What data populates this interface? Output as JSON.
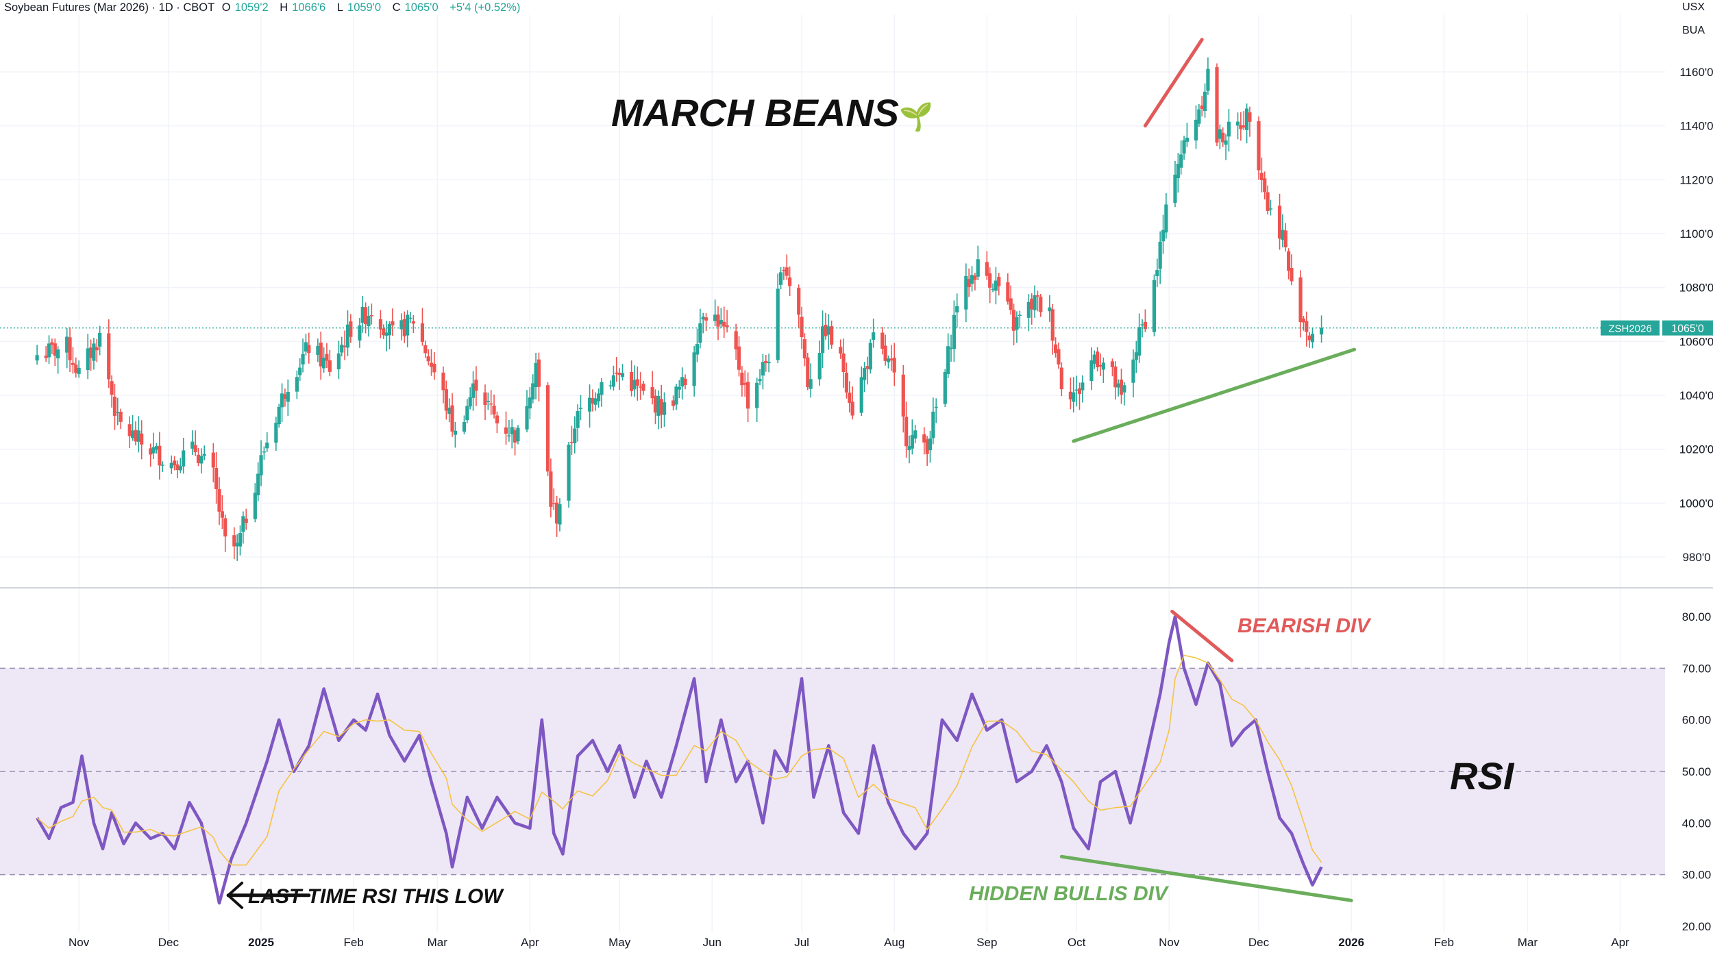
{
  "header": {
    "instrument": "Soybean Futures (Mar 2026) · 1D · CBOT",
    "open_label": "O",
    "open": "1059'2",
    "high_label": "H",
    "high": "1066'6",
    "low_label": "L",
    "low": "1059'0",
    "close_label": "C",
    "close": "1065'0",
    "change": "+5'4 (+0.52%)"
  },
  "currency": "USX",
  "unit": "BUA",
  "title": "MARCH BEANS",
  "title_emoji": "🌱",
  "price_label": {
    "symbol": "ZSH2026",
    "value": "1065'0"
  },
  "annotations": {
    "bearish_div": "BEARISH DIV",
    "hidden_bullish_div": "HIDDEN BULLIS DIV",
    "rsi_label": "RSI",
    "last_time": "LAST TIME RSI THIS LOW"
  },
  "colors": {
    "up": "#26a69a",
    "down": "#ef5350",
    "rsi_line": "#7e57c2",
    "rsi_ma": "#f6c343",
    "rsi_band": "#ede7f6",
    "bearish": "#e15a5a",
    "bullish": "#6aad5b",
    "price_label_bg": "#26a69a"
  },
  "chart_data": [
    {
      "type": "candlestick",
      "title": "MARCH BEANS",
      "ylim": [
        970,
        1175
      ],
      "yticks": [
        "980'0",
        "1000'0",
        "1020'0",
        "1040'0",
        "1060'0",
        "1080'0",
        "1100'0",
        "1120'0",
        "1140'0",
        "1160'0"
      ],
      "ytick_values": [
        980,
        1000,
        1020,
        1040,
        1060,
        1080,
        1100,
        1120,
        1140,
        1160
      ],
      "last_price": 1065,
      "path_anchors": [
        [
          "2024-10-18",
          1055
        ],
        [
          "2024-10-28",
          1058
        ],
        [
          "2024-11-01",
          1048
        ],
        [
          "2024-11-08",
          1062
        ],
        [
          "2024-11-14",
          1030
        ],
        [
          "2024-11-22",
          1022
        ],
        [
          "2024-12-02",
          1015
        ],
        [
          "2024-12-10",
          1020
        ],
        [
          "2024-12-16",
          1010
        ],
        [
          "2024-12-20",
          985
        ],
        [
          "2024-12-24",
          983
        ],
        [
          "2025-01-02",
          1020
        ],
        [
          "2025-01-10",
          1045
        ],
        [
          "2025-01-17",
          1058
        ],
        [
          "2025-01-24",
          1050
        ],
        [
          "2025-01-31",
          1065
        ],
        [
          "2025-02-07",
          1072
        ],
        [
          "2025-02-14",
          1062
        ],
        [
          "2025-02-21",
          1068
        ],
        [
          "2025-03-03",
          1040
        ],
        [
          "2025-03-07",
          1025
        ],
        [
          "2025-03-14",
          1045
        ],
        [
          "2025-03-21",
          1030
        ],
        [
          "2025-03-28",
          1025
        ],
        [
          "2025-04-03",
          1052
        ],
        [
          "2025-04-08",
          1000
        ],
        [
          "2025-04-10",
          995
        ],
        [
          "2025-04-16",
          1030
        ],
        [
          "2025-04-25",
          1045
        ],
        [
          "2025-05-02",
          1048
        ],
        [
          "2025-05-09",
          1040
        ],
        [
          "2025-05-16",
          1035
        ],
        [
          "2025-05-23",
          1045
        ],
        [
          "2025-05-29",
          1072
        ],
        [
          "2025-06-03",
          1068
        ],
        [
          "2025-06-09",
          1055
        ],
        [
          "2025-06-13",
          1038
        ],
        [
          "2025-06-20",
          1055
        ],
        [
          "2025-06-25",
          1090
        ],
        [
          "2025-06-30",
          1070
        ],
        [
          "2025-07-03",
          1045
        ],
        [
          "2025-07-09",
          1065
        ],
        [
          "2025-07-15",
          1050
        ],
        [
          "2025-07-18",
          1035
        ],
        [
          "2025-07-25",
          1060
        ],
        [
          "2025-07-31",
          1050
        ],
        [
          "2025-08-05",
          1025
        ],
        [
          "2025-08-12",
          1022
        ],
        [
          "2025-08-18",
          1048
        ],
        [
          "2025-08-22",
          1075
        ],
        [
          "2025-08-29",
          1088
        ],
        [
          "2025-09-05",
          1080
        ],
        [
          "2025-09-10",
          1066
        ],
        [
          "2025-09-17",
          1075
        ],
        [
          "2025-09-22",
          1070
        ],
        [
          "2025-09-26",
          1045
        ],
        [
          "2025-10-01",
          1040
        ],
        [
          "2025-10-07",
          1055
        ],
        [
          "2025-10-12",
          1050
        ],
        [
          "2025-10-16",
          1038
        ],
        [
          "2025-10-22",
          1062
        ],
        [
          "2025-10-26",
          1075
        ],
        [
          "2025-10-29",
          1095
        ],
        [
          "2025-11-03",
          1125
        ],
        [
          "2025-11-07",
          1135
        ],
        [
          "2025-11-12",
          1150
        ],
        [
          "2025-11-14",
          1160
        ],
        [
          "2025-11-17",
          1135
        ],
        [
          "2025-11-24",
          1140
        ],
        [
          "2025-11-28",
          1145
        ],
        [
          "2025-12-04",
          1110
        ],
        [
          "2025-12-09",
          1100
        ],
        [
          "2025-12-12",
          1080
        ],
        [
          "2025-12-18",
          1062
        ],
        [
          "2025-12-22",
          1065
        ]
      ]
    },
    {
      "type": "line",
      "title": "RSI",
      "ylim": [
        20,
        85
      ],
      "yticks": [
        "20.00",
        "30.00",
        "40.00",
        "50.00",
        "60.00",
        "70.00",
        "80.00"
      ],
      "ytick_values": [
        20,
        30,
        40,
        50,
        60,
        70,
        80
      ],
      "band": [
        30,
        70
      ],
      "dashed_levels": [
        30,
        50,
        70
      ],
      "series": [
        {
          "points": [
            [
              "2024-10-18",
              41
            ],
            [
              "2024-10-22",
              37
            ],
            [
              "2024-10-26",
              43
            ],
            [
              "2024-10-30",
              44
            ],
            [
              "2024-11-02",
              53
            ],
            [
              "2024-11-06",
              40
            ],
            [
              "2024-11-09",
              35
            ],
            [
              "2024-11-12",
              42
            ],
            [
              "2024-11-16",
              36
            ],
            [
              "2024-11-20",
              40
            ],
            [
              "2024-11-25",
              37
            ],
            [
              "2024-11-29",
              38
            ],
            [
              "2024-12-03",
              35
            ],
            [
              "2024-12-08",
              44
            ],
            [
              "2024-12-12",
              40
            ],
            [
              "2024-12-16",
              30
            ],
            [
              "2024-12-18",
              24.5
            ],
            [
              "2024-12-22",
              33
            ],
            [
              "2024-12-27",
              40
            ],
            [
              "2025-01-03",
              52
            ],
            [
              "2025-01-07",
              60
            ],
            [
              "2025-01-12",
              50
            ],
            [
              "2025-01-17",
              55
            ],
            [
              "2025-01-22",
              66
            ],
            [
              "2025-01-27",
              56
            ],
            [
              "2025-02-01",
              60
            ],
            [
              "2025-02-05",
              58
            ],
            [
              "2025-02-09",
              65
            ],
            [
              "2025-02-13",
              57
            ],
            [
              "2025-02-18",
              52
            ],
            [
              "2025-02-23",
              57
            ],
            [
              "2025-02-27",
              48
            ],
            [
              "2025-03-04",
              38
            ],
            [
              "2025-03-06",
              31.5
            ],
            [
              "2025-03-11",
              45
            ],
            [
              "2025-03-16",
              39
            ],
            [
              "2025-03-21",
              45
            ],
            [
              "2025-03-27",
              40
            ],
            [
              "2025-04-01",
              39
            ],
            [
              "2025-04-05",
              60
            ],
            [
              "2025-04-09",
              38
            ],
            [
              "2025-04-12",
              34
            ],
            [
              "2025-04-17",
              53
            ],
            [
              "2025-04-22",
              56
            ],
            [
              "2025-04-27",
              50
            ],
            [
              "2025-05-01",
              55
            ],
            [
              "2025-05-06",
              45
            ],
            [
              "2025-05-10",
              52
            ],
            [
              "2025-05-15",
              45
            ],
            [
              "2025-05-20",
              55
            ],
            [
              "2025-05-26",
              68
            ],
            [
              "2025-05-30",
              48
            ],
            [
              "2025-06-04",
              60
            ],
            [
              "2025-06-09",
              48
            ],
            [
              "2025-06-13",
              52
            ],
            [
              "2025-06-18",
              40
            ],
            [
              "2025-06-22",
              54
            ],
            [
              "2025-06-26",
              50
            ],
            [
              "2025-07-01",
              68
            ],
            [
              "2025-07-05",
              45
            ],
            [
              "2025-07-10",
              55
            ],
            [
              "2025-07-15",
              42
            ],
            [
              "2025-07-20",
              38
            ],
            [
              "2025-07-25",
              55
            ],
            [
              "2025-07-30",
              44
            ],
            [
              "2025-08-04",
              38
            ],
            [
              "2025-08-08",
              35
            ],
            [
              "2025-08-12",
              38
            ],
            [
              "2025-08-17",
              60
            ],
            [
              "2025-08-22",
              56
            ],
            [
              "2025-08-27",
              65
            ],
            [
              "2025-09-01",
              58
            ],
            [
              "2025-09-06",
              60
            ],
            [
              "2025-09-11",
              48
            ],
            [
              "2025-09-16",
              50
            ],
            [
              "2025-09-21",
              55
            ],
            [
              "2025-09-26",
              48
            ],
            [
              "2025-09-30",
              39
            ],
            [
              "2025-10-05",
              35
            ],
            [
              "2025-10-09",
              48
            ],
            [
              "2025-10-14",
              50
            ],
            [
              "2025-10-19",
              40
            ],
            [
              "2025-10-24",
              52
            ],
            [
              "2025-10-29",
              65
            ],
            [
              "2025-11-01",
              75
            ],
            [
              "2025-11-03",
              80
            ],
            [
              "2025-11-06",
              70
            ],
            [
              "2025-11-10",
              63
            ],
            [
              "2025-11-14",
              71
            ],
            [
              "2025-11-18",
              67
            ],
            [
              "2025-11-22",
              55
            ],
            [
              "2025-11-26",
              58
            ],
            [
              "2025-11-30",
              60
            ],
            [
              "2025-12-04",
              50
            ],
            [
              "2025-12-08",
              41
            ],
            [
              "2025-12-12",
              38
            ],
            [
              "2025-12-16",
              32
            ],
            [
              "2025-12-19",
              28
            ],
            [
              "2025-12-22",
              31.5
            ]
          ]
        }
      ]
    }
  ],
  "x_axis": {
    "ticks": [
      {
        "label": "Nov",
        "date": "2024-11-01",
        "bold": false
      },
      {
        "label": "Dec",
        "date": "2024-12-01",
        "bold": false
      },
      {
        "label": "2025",
        "date": "2025-01-01",
        "bold": true
      },
      {
        "label": "Feb",
        "date": "2025-02-01",
        "bold": false
      },
      {
        "label": "Mar",
        "date": "2025-03-01",
        "bold": false
      },
      {
        "label": "Apr",
        "date": "2025-04-01",
        "bold": false
      },
      {
        "label": "May",
        "date": "2025-05-01",
        "bold": false
      },
      {
        "label": "Jun",
        "date": "2025-06-01",
        "bold": false
      },
      {
        "label": "Jul",
        "date": "2025-07-01",
        "bold": false
      },
      {
        "label": "Aug",
        "date": "2025-08-01",
        "bold": false
      },
      {
        "label": "Sep",
        "date": "2025-09-01",
        "bold": false
      },
      {
        "label": "Oct",
        "date": "2025-10-01",
        "bold": false
      },
      {
        "label": "Nov",
        "date": "2025-11-01",
        "bold": false
      },
      {
        "label": "Dec",
        "date": "2025-12-01",
        "bold": false
      },
      {
        "label": "2026",
        "date": "2026-01-01",
        "bold": true
      },
      {
        "label": "Feb",
        "date": "2026-02-01",
        "bold": false
      },
      {
        "label": "Mar",
        "date": "2026-03-01",
        "bold": false
      },
      {
        "label": "Apr",
        "date": "2026-04-01",
        "bold": false
      }
    ]
  },
  "trendlines": [
    {
      "name": "price-bearish-trendline",
      "pane": 0,
      "from": [
        "2025-10-24",
        1140
      ],
      "to": [
        "2025-11-12",
        1172
      ],
      "color": "bearish"
    },
    {
      "name": "price-support-trendline",
      "pane": 0,
      "from": [
        "2025-09-30",
        1023
      ],
      "to": [
        "2026-01-02",
        1057
      ],
      "color": "bullish"
    },
    {
      "name": "rsi-bearish-div-line",
      "pane": 1,
      "from": [
        "2025-11-02",
        81
      ],
      "to": [
        "2025-11-22",
        71.5
      ],
      "color": "bearish"
    },
    {
      "name": "rsi-hidden-bullish-div-line",
      "pane": 1,
      "from": [
        "2025-09-26",
        33.5
      ],
      "to": [
        "2026-01-01",
        25
      ]
    },
    {
      "name": "rsi-last-time-arrow",
      "pane": 1,
      "from": [
        "2025-01-17",
        26
      ],
      "to": [
        "2024-12-21",
        26
      ],
      "color": "#111111"
    }
  ]
}
